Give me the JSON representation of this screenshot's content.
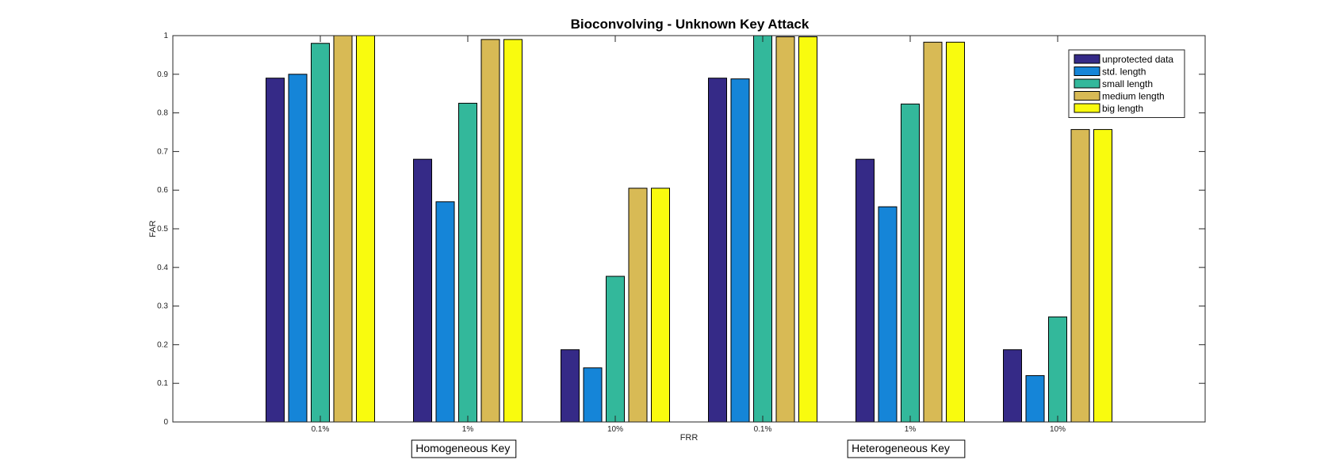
{
  "chart_data": {
    "type": "bar",
    "title": "Bioconvolving - Unknown Key Attack",
    "xlabel": "FRR",
    "ylabel": "FAR",
    "ylim": [
      0,
      1
    ],
    "yticks": [
      "0",
      "0.1",
      "0.2",
      "0.3",
      "0.4",
      "0.5",
      "0.6",
      "0.7",
      "0.8",
      "0.9",
      "1"
    ],
    "categories": [
      "0.1%",
      "1%",
      "10%",
      "0.1%",
      "1%",
      "10%"
    ],
    "group_labels": [
      {
        "label": "Homogeneous Key",
        "categories": [
          0,
          2
        ]
      },
      {
        "label": "Heterogeneous Key",
        "categories": [
          3,
          5
        ]
      }
    ],
    "grid": false,
    "legend_position": "top-right",
    "series": [
      {
        "name": "unprotected data",
        "color": "#352a87",
        "values": [
          0.89,
          0.68,
          0.187,
          0.89,
          0.68,
          0.187
        ]
      },
      {
        "name": "std. length",
        "color": "#1585d8",
        "values": [
          0.9,
          0.57,
          0.14,
          0.888,
          0.557,
          0.12
        ]
      },
      {
        "name": "small length",
        "color": "#33b89b",
        "values": [
          0.98,
          0.825,
          0.377,
          1.0,
          0.823,
          0.272
        ]
      },
      {
        "name": "medium length",
        "color": "#d8ba55",
        "values": [
          1.0,
          0.99,
          0.605,
          0.997,
          0.983,
          0.757
        ]
      },
      {
        "name": "big length",
        "color": "#f9fb0e",
        "values": [
          1.0,
          0.99,
          0.605,
          0.997,
          0.983,
          0.757
        ]
      }
    ]
  }
}
